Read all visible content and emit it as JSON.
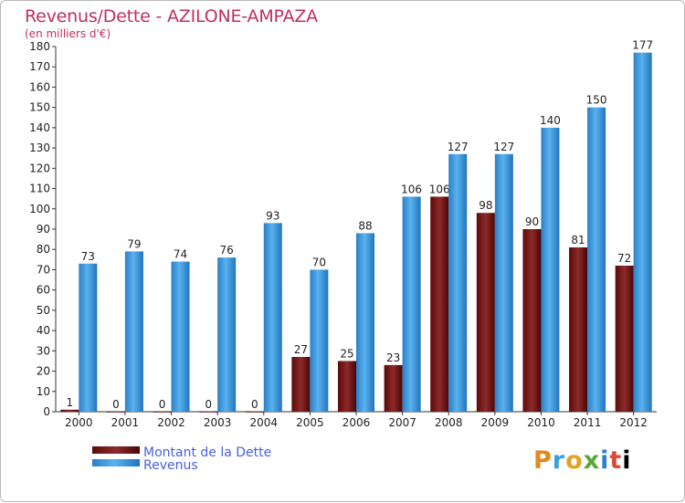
{
  "chart_data": {
    "type": "bar",
    "title": "Revenus/Dette - AZILONE-AMPAZA",
    "subtitle": "(en milliers d'€)",
    "categories": [
      "2000",
      "2001",
      "2002",
      "2003",
      "2004",
      "2005",
      "2006",
      "2007",
      "2008",
      "2009",
      "2010",
      "2011",
      "2012"
    ],
    "series": [
      {
        "name": "Montant de la Dette",
        "color": "#7a1a1a",
        "values": [
          1,
          0,
          0,
          0,
          0,
          27,
          25,
          23,
          106,
          98,
          90,
          81,
          72
        ]
      },
      {
        "name": "Revenus",
        "color": "#3a9ae0",
        "values": [
          73,
          79,
          74,
          76,
          93,
          70,
          88,
          106,
          127,
          127,
          140,
          150,
          177
        ]
      }
    ],
    "ylim": [
      0,
      180
    ],
    "yticks": [
      0,
      10,
      20,
      30,
      40,
      50,
      60,
      70,
      80,
      90,
      100,
      110,
      120,
      130,
      140,
      150,
      160,
      170,
      180
    ],
    "xlabel": "",
    "ylabel": "",
    "grid": false,
    "legend_position": "bottom-left"
  },
  "logo": {
    "letters": [
      "P",
      "r",
      "o",
      "x",
      "i",
      "t",
      "i"
    ]
  }
}
